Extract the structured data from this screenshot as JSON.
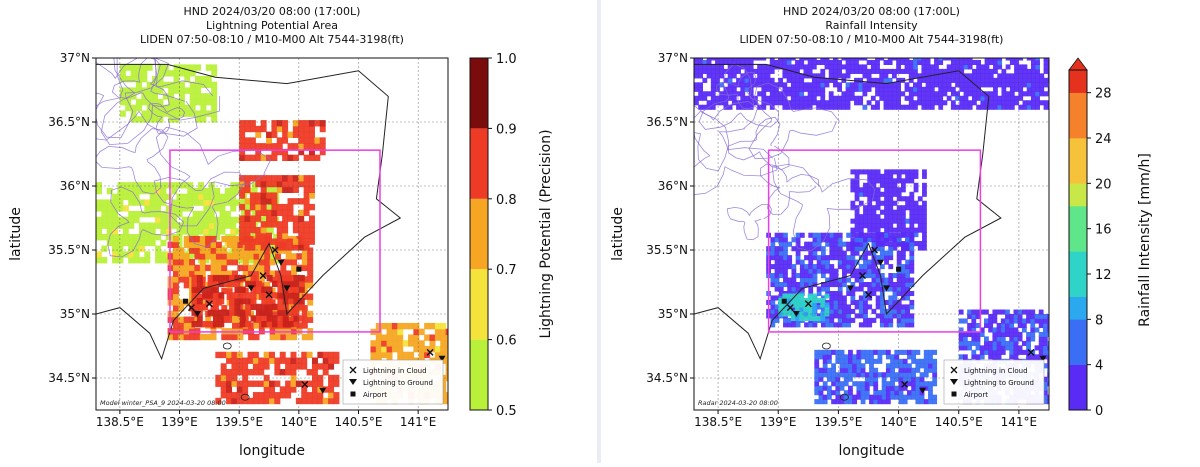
{
  "panels": [
    {
      "title_lines": [
        "HND  2024/03/20 08:00 (17:00L)",
        "Lightning Potential Area",
        "LIDEN 07:50-08:10 / M10-M00 Alt 7544-3198(ft)"
      ],
      "xlabel": "longitude",
      "ylabel": "latitude",
      "colorbar_label": "Lightning Potential (Precision)",
      "colorbar_ticks": [
        "0.5",
        "0.6",
        "0.7",
        "0.8",
        "0.9",
        "1.0"
      ],
      "watermark": "Model winter_PSA_9 2024-03-20 08:00",
      "legend": [
        "Lightning in Cloud",
        "Lightning to Ground",
        "Airport"
      ]
    },
    {
      "title_lines": [
        "HND  2024/03/20 08:00 (17:00L)",
        "Rainfall Intensity",
        "LIDEN 07:50-08:10 / M10-M00 Alt 7544-3198(ft)"
      ],
      "xlabel": "longitude",
      "ylabel": "latitude",
      "colorbar_label": "Rainfall Intensity [mm/h]",
      "colorbar_ticks": [
        "0",
        "4",
        "8",
        "12",
        "16",
        "20",
        "24",
        "28"
      ],
      "watermark": "Radar 2024-03-20 08:00",
      "legend": [
        "Lightning in Cloud",
        "Lightning to Ground",
        "Airport"
      ]
    }
  ],
  "axes": {
    "x_ticks": [
      "138.5°E",
      "139°E",
      "139.5°E",
      "140°E",
      "140.5°E",
      "141°E"
    ],
    "y_ticks": [
      "37°N",
      "36.5°N",
      "36°N",
      "35.5°N",
      "35°N",
      "34.5°N"
    ]
  },
  "colors": {
    "potential_scale": [
      "#b9f03a",
      "#f3e33a",
      "#f7a623",
      "#ee3b26",
      "#c9211a",
      "#7a0c0c"
    ],
    "rain_scale": [
      "#5a2bf5",
      "#3a6ff5",
      "#2ca8ef",
      "#2fd3c8",
      "#5fe58a",
      "#c8e84a",
      "#f5c23a",
      "#f5822a",
      "#e5321f"
    ],
    "box": "#ea3ee6",
    "contour": "#8a6bd6"
  },
  "chart_data": [
    {
      "type": "heatmap",
      "title": "Lightning Potential Area",
      "xlabel": "longitude",
      "ylabel": "latitude",
      "xlim": [
        138.3,
        141.25
      ],
      "ylim": [
        34.25,
        37.0
      ],
      "value_range": [
        0.5,
        1.0
      ],
      "colorbar_label": "Lightning Potential (Precision)",
      "regions": [
        {
          "lon_range": [
            138.5,
            139.3
          ],
          "lat_range": [
            36.5,
            36.95
          ],
          "level": 0.5
        },
        {
          "lon_range": [
            138.3,
            139.8
          ],
          "lat_range": [
            35.4,
            36.0
          ],
          "level": 0.55
        },
        {
          "lon_range": [
            138.9,
            140.1
          ],
          "lat_range": [
            34.8,
            35.6
          ],
          "level": 0.8
        },
        {
          "lon_range": [
            139.1,
            140.0
          ],
          "lat_range": [
            34.9,
            35.3
          ],
          "level": 0.9
        },
        {
          "lon_range": [
            139.5,
            140.1
          ],
          "lat_range": [
            35.5,
            36.05
          ],
          "level": 0.85
        },
        {
          "lon_range": [
            139.5,
            140.2
          ],
          "lat_range": [
            36.2,
            36.5
          ],
          "level": 0.85
        },
        {
          "lon_range": [
            139.3,
            140.3
          ],
          "lat_range": [
            34.3,
            34.7
          ],
          "level": 0.85
        },
        {
          "lon_range": [
            140.6,
            141.25
          ],
          "lat_range": [
            34.3,
            34.9
          ],
          "level": 0.75
        }
      ],
      "legend": [
        "Lightning in Cloud",
        "Lightning to Ground",
        "Airport"
      ]
    },
    {
      "type": "heatmap",
      "title": "Rainfall Intensity",
      "xlabel": "longitude",
      "ylabel": "latitude",
      "xlim": [
        138.3,
        141.25
      ],
      "ylim": [
        34.25,
        37.0
      ],
      "value_range": [
        0,
        30
      ],
      "colorbar_label": "Rainfall Intensity [mm/h]",
      "regions": [
        {
          "lon_range": [
            138.3,
            141.25
          ],
          "lat_range": [
            36.6,
            37.0
          ],
          "level": 2
        },
        {
          "lon_range": [
            139.6,
            140.2
          ],
          "lat_range": [
            35.5,
            36.1
          ],
          "level": 2
        },
        {
          "lon_range": [
            138.9,
            140.1
          ],
          "lat_range": [
            34.9,
            35.6
          ],
          "level": 3
        },
        {
          "lon_range": [
            139.0,
            139.4
          ],
          "lat_range": [
            34.95,
            35.15
          ],
          "level": 12
        },
        {
          "lon_range": [
            139.3,
            140.3
          ],
          "lat_range": [
            34.3,
            34.7
          ],
          "level": 4
        },
        {
          "lon_range": [
            140.5,
            141.25
          ],
          "lat_range": [
            34.3,
            35.0
          ],
          "level": 3
        }
      ],
      "legend": [
        "Lightning in Cloud",
        "Lightning to Ground",
        "Airport"
      ]
    }
  ]
}
